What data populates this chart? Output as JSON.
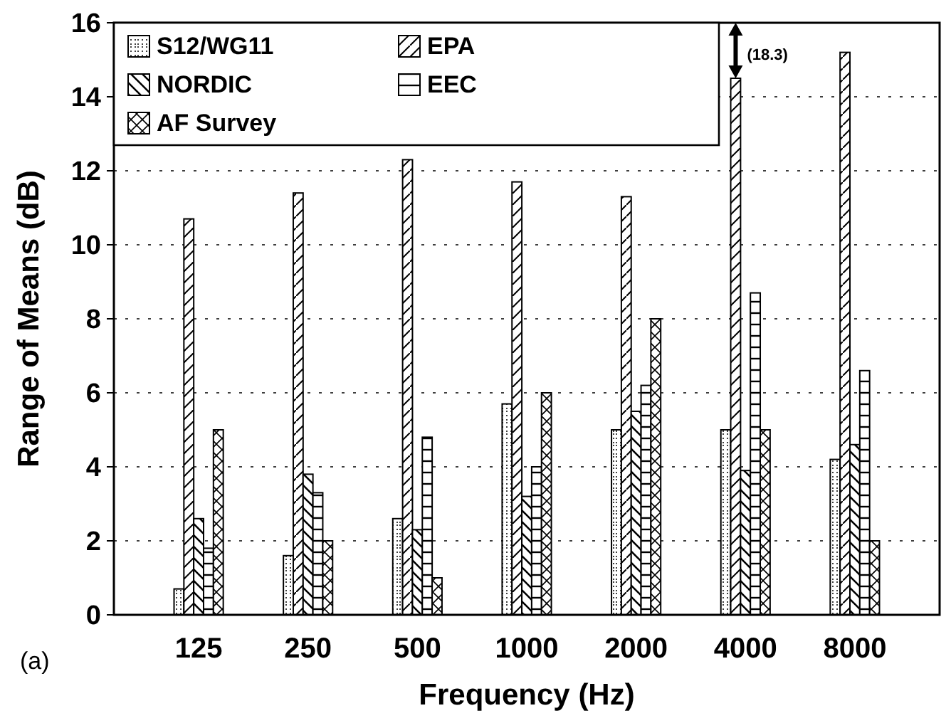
{
  "chart_data": {
    "type": "bar",
    "xlabel": "Frequency (Hz)",
    "ylabel": "Range of Means (dB)",
    "categories": [
      "125",
      "250",
      "500",
      "1000",
      "2000",
      "4000",
      "8000"
    ],
    "series": [
      {
        "name": "S12/WG11",
        "color": "#000000",
        "values": [
          0.7,
          1.6,
          2.6,
          5.7,
          5.0,
          5.0,
          4.2
        ]
      },
      {
        "name": "EPA",
        "color": "#000000",
        "values": [
          10.7,
          11.4,
          12.3,
          11.7,
          11.3,
          14.5,
          15.2
        ]
      },
      {
        "name": "NORDIC",
        "color": "#000000",
        "values": [
          2.6,
          3.8,
          2.3,
          3.2,
          5.5,
          3.9,
          4.6
        ]
      },
      {
        "name": "EEC",
        "color": "#000000",
        "values": [
          1.8,
          3.3,
          4.8,
          4.0,
          6.2,
          8.7,
          6.6
        ]
      },
      {
        "name": "AF Survey",
        "color": "#000000",
        "values": [
          5.0,
          2.0,
          1.0,
          6.0,
          8.0,
          5.0,
          2.0
        ]
      }
    ],
    "ylim": [
      0,
      16
    ],
    "yticks": [
      0,
      2,
      4,
      6,
      8,
      10,
      12,
      14,
      16
    ],
    "grid": "y",
    "legend": "top left",
    "annotations": [
      "(18.3)",
      "(a)"
    ]
  }
}
